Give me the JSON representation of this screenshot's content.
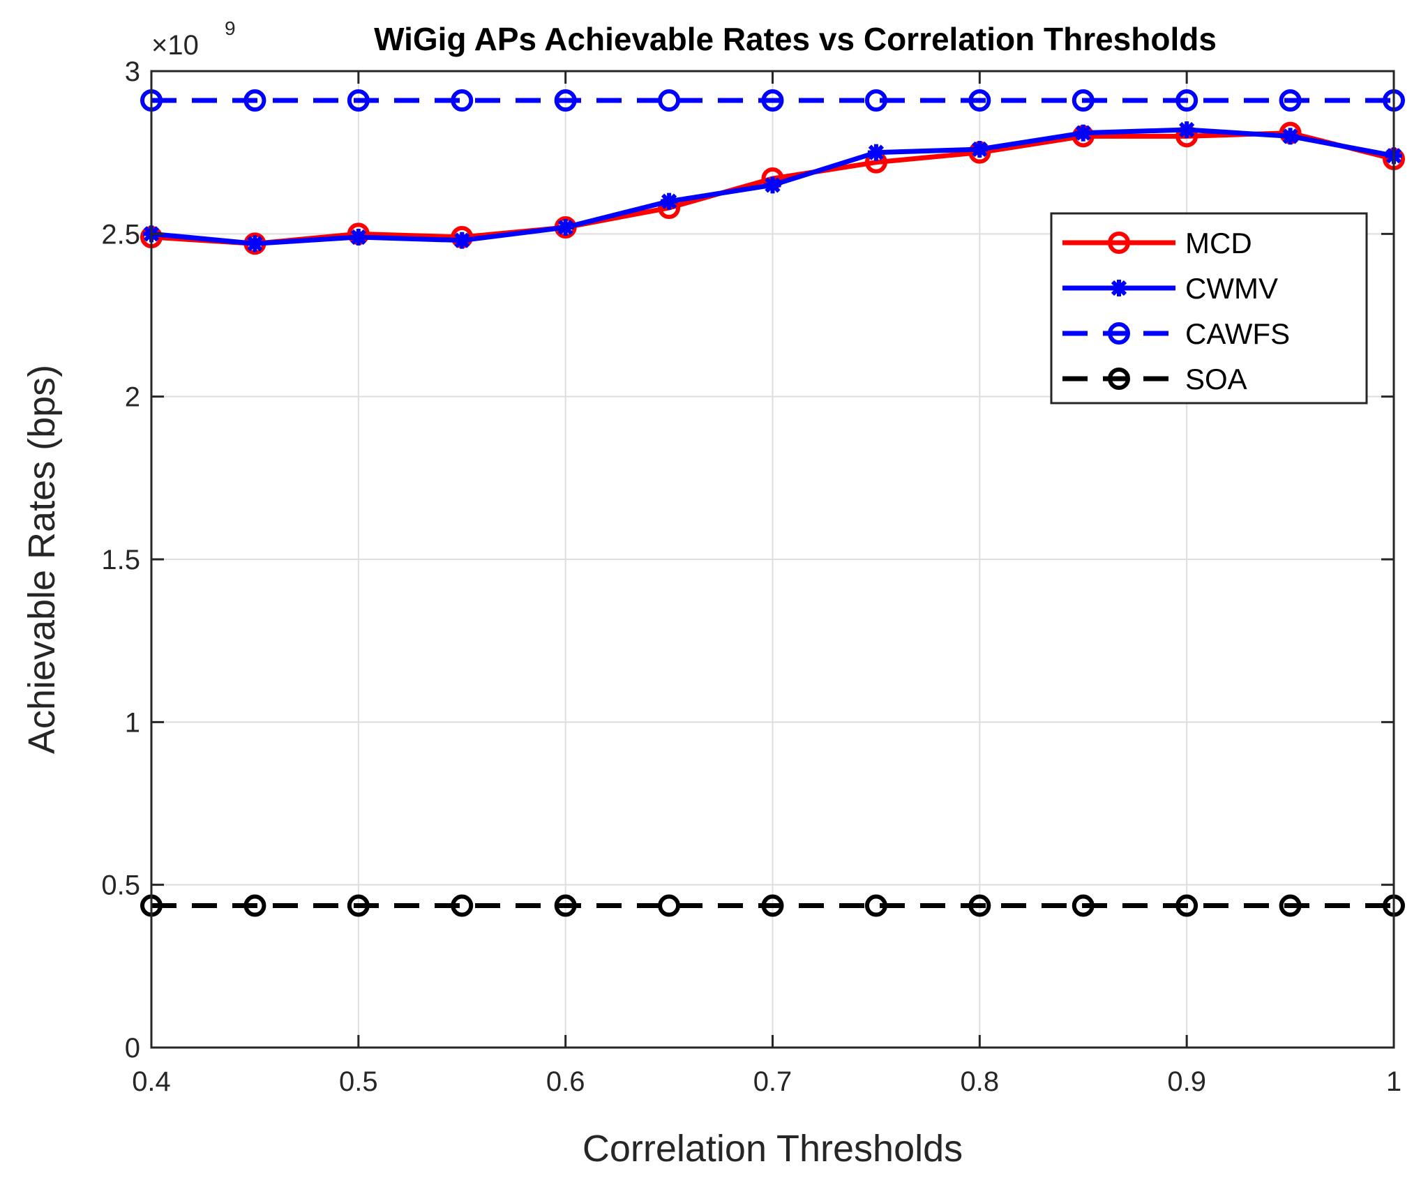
{
  "chart_data": {
    "type": "line",
    "title": "WiGig APs Achievable Rates vs Correlation Thresholds",
    "xlabel": "Correlation Thresholds",
    "ylabel": "Achievable Rates (bps)",
    "y_exponent_base": "×10",
    "y_exponent_power": "9",
    "xlim": [
      0.4,
      1.0
    ],
    "ylim": [
      0,
      3000000000
    ],
    "x_ticks": [
      "0.4",
      "0.5",
      "0.6",
      "0.7",
      "0.8",
      "0.9",
      "1"
    ],
    "y_ticks": [
      "0",
      "0.5",
      "1",
      "1.5",
      "2",
      "2.5",
      "3"
    ],
    "x_tick_values": [
      0.4,
      0.5,
      0.6,
      0.7,
      0.8,
      0.9,
      1.0
    ],
    "y_tick_values": [
      0,
      0.5,
      1,
      1.5,
      2,
      2.5,
      3
    ],
    "grid": true,
    "legend_position": "top-right",
    "x": [
      0.4,
      0.45,
      0.5,
      0.55,
      0.6,
      0.65,
      0.7,
      0.75,
      0.8,
      0.85,
      0.9,
      0.95,
      1.0
    ],
    "series": [
      {
        "name": "MCD",
        "color": "#ff0000",
        "line_style": "solid",
        "marker": "circle",
        "values": [
          2490000000,
          2470000000,
          2500000000,
          2490000000,
          2520000000,
          2580000000,
          2670000000,
          2720000000,
          2750000000,
          2800000000,
          2800000000,
          2810000000,
          2730000000
        ]
      },
      {
        "name": "CWMV",
        "color": "#0000ff",
        "line_style": "solid",
        "marker": "asterisk",
        "values": [
          2500000000,
          2470000000,
          2490000000,
          2480000000,
          2520000000,
          2600000000,
          2650000000,
          2750000000,
          2760000000,
          2810000000,
          2820000000,
          2800000000,
          2740000000
        ]
      },
      {
        "name": "CAWFS",
        "color": "#0000ff",
        "line_style": "dashed",
        "marker": "circle",
        "values": [
          2910000000,
          2910000000,
          2910000000,
          2910000000,
          2910000000,
          2910000000,
          2910000000,
          2910000000,
          2910000000,
          2910000000,
          2910000000,
          2910000000,
          2910000000
        ]
      },
      {
        "name": "SOA",
        "color": "#000000",
        "line_style": "dashed",
        "marker": "circle",
        "values": [
          436000000,
          436000000,
          436000000,
          436000000,
          436000000,
          436000000,
          436000000,
          436000000,
          436000000,
          436000000,
          436000000,
          436000000,
          436000000
        ]
      }
    ]
  }
}
